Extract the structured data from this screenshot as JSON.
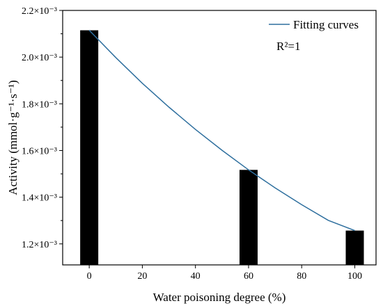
{
  "chart_data": {
    "type": "bar",
    "title": "",
    "xlabel": "Water poisoning degree (%)",
    "ylabel": "Activity (mmol·g⁻¹·s⁻¹)",
    "x": [
      0,
      60,
      100
    ],
    "values": [
      0.002115,
      0.001517,
      0.001257
    ],
    "xlim": [
      -10,
      108
    ],
    "ylim": [
      0.00111,
      0.0022
    ],
    "xticks": [
      0,
      20,
      40,
      60,
      80,
      100
    ],
    "xtick_labels": [
      "0",
      "20",
      "40",
      "60",
      "80",
      "100"
    ],
    "yticks": [
      0.0012,
      0.0014,
      0.0016,
      0.0018,
      0.002,
      0.0022
    ],
    "ytick_labels": [
      "1.2×10⁻³",
      "1.4×10⁻³",
      "1.6×10⁻³",
      "1.8×10⁻³",
      "2.0×10⁻³",
      "2.2×10⁻³"
    ],
    "bar_color": "#000000",
    "fit": {
      "name": "Fitting curves",
      "color": "#2e6f9e",
      "note": "R²=1",
      "x": [
        0,
        10,
        20,
        30,
        40,
        50,
        60,
        70,
        80,
        90,
        100
      ],
      "y": [
        0.002115,
        0.001998,
        0.001888,
        0.001786,
        0.00169,
        0.001601,
        0.001517,
        0.00144,
        0.001368,
        0.001301,
        0.001257
      ]
    },
    "legend_position": "top-right",
    "grid": false
  }
}
